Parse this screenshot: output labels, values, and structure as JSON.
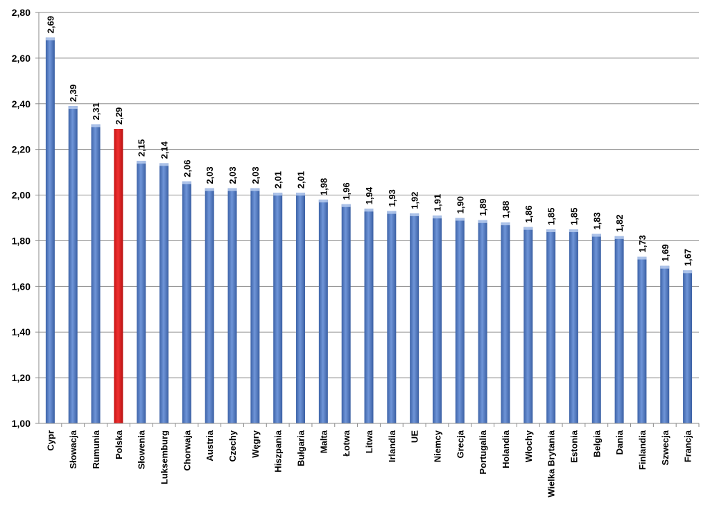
{
  "colors": {
    "bar": "#4a74bf",
    "bar_highlight": "#e01b1b",
    "gridline": "#8a8a8a",
    "axis": "#8a8a8a"
  },
  "chart_data": {
    "type": "bar",
    "title": "",
    "xlabel": "",
    "ylabel": "",
    "ylim": [
      1.0,
      2.8
    ],
    "grid": true,
    "legend": "none",
    "y_ticks": [
      "1,00",
      "1,20",
      "1,40",
      "1,60",
      "1,80",
      "2,00",
      "2,20",
      "2,40",
      "2,60",
      "2,80"
    ],
    "categories": [
      "Cypr",
      "Słowacja",
      "Rumunia",
      "Polska",
      "Słowenia",
      "Luksemburg",
      "Chorwaja",
      "Austria",
      "Czechy",
      "Węgry",
      "Hiszpania",
      "Bułgaria",
      "Malta",
      "Łotwa",
      "Litwa",
      "Irlandia",
      "UE",
      "Niemcy",
      "Grecja",
      "Portugalia",
      "Holandia",
      "Włochy",
      "Wielka Brytania",
      "Estonia",
      "Belgia",
      "Dania",
      "Finlandia",
      "Szwecja",
      "Francja"
    ],
    "values": [
      2.69,
      2.39,
      2.31,
      2.29,
      2.15,
      2.14,
      2.06,
      2.03,
      2.03,
      2.03,
      2.01,
      2.01,
      1.98,
      1.96,
      1.94,
      1.93,
      1.92,
      1.91,
      1.9,
      1.89,
      1.88,
      1.86,
      1.85,
      1.85,
      1.83,
      1.82,
      1.73,
      1.69,
      1.67
    ],
    "data_labels": [
      "2,69",
      "2,39",
      "2,31",
      "2,29",
      "2,15",
      "2,14",
      "2,06",
      "2,03",
      "2,03",
      "2,03",
      "2,01",
      "2,01",
      "1,98",
      "1,96",
      "1,94",
      "1,93",
      "1,92",
      "1,91",
      "1,90",
      "1,89",
      "1,88",
      "1,86",
      "1,85",
      "1,85",
      "1,83",
      "1,82",
      "1,73",
      "1,69",
      "1,67"
    ],
    "highlight_category": "Polska"
  }
}
